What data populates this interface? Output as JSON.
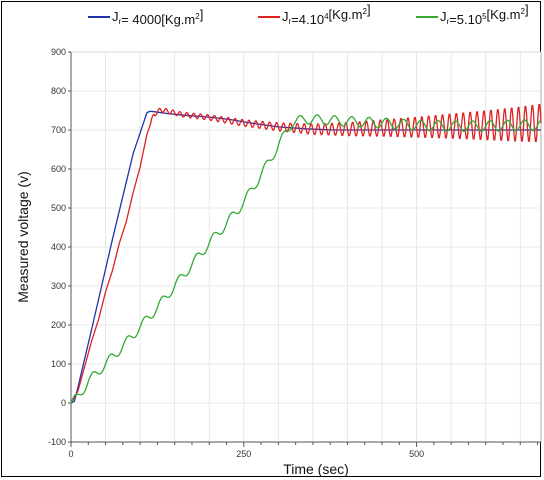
{
  "chart_data": {
    "type": "line",
    "title": "",
    "xlabel": "Time (sec)",
    "ylabel": "Measured voltage (v)",
    "xlim": [
      0,
      680
    ],
    "ylim": [
      -100,
      900
    ],
    "x_ticks": [
      0,
      250,
      500
    ],
    "y_ticks": [
      -100,
      0,
      100,
      200,
      300,
      400,
      500,
      600,
      700,
      800,
      900
    ],
    "grid": true,
    "legend_position": "top",
    "legend": [
      {
        "pre": "J",
        "sub": "r",
        "mid": "= 4000[Kg.m",
        "sup": "2",
        "post": "]"
      },
      {
        "pre": "J",
        "sub": "r",
        "mid": "=4.10",
        "sup": "4",
        "post": "[Kg.m",
        "sup2": "2",
        "post2": "]"
      },
      {
        "pre": "J",
        "sub": "r",
        "mid": "=5.10",
        "sup": "5",
        "post": "[Kg.m",
        "sup2": "2",
        "post2": "]"
      }
    ],
    "series": [
      {
        "name": "Jr= 4000[Kg.m2]",
        "color": "#2233aa",
        "x": [
          0,
          5,
          10,
          30,
          60,
          90,
          110,
          115,
          120,
          140,
          170,
          200,
          230,
          260,
          300,
          340,
          380,
          420,
          460,
          500,
          540,
          580,
          620,
          660,
          680
        ],
        "y": [
          0,
          5,
          40,
          190,
          420,
          640,
          745,
          748,
          747,
          742,
          737,
          733,
          727,
          718,
          708,
          703,
          700,
          700,
          700,
          700,
          700,
          700,
          700,
          700,
          700
        ]
      },
      {
        "name": "Jr=4.10^4[Kg.m2]",
        "color": "#dd2222",
        "x": [
          0,
          10,
          20,
          30,
          40,
          50,
          60,
          70,
          80,
          90,
          100,
          110,
          120,
          130,
          140,
          160,
          200,
          250,
          300,
          350,
          400,
          450,
          500,
          550,
          600,
          650,
          680
        ],
        "y": [
          0,
          30,
          95,
          160,
          215,
          285,
          340,
          410,
          465,
          540,
          605,
          690,
          740,
          752,
          748,
          740,
          732,
          718,
          708,
          702,
          702,
          705,
          707,
          710,
          712,
          715,
          718
        ],
        "oscillation": {
          "start": 115,
          "amplitude_start": 6,
          "amplitude_end": 50,
          "period": 10
        }
      },
      {
        "name": "Jr=5.10^5[Kg.m2]",
        "color": "#33aa33",
        "x": [
          0,
          10,
          25,
          50,
          75,
          100,
          125,
          150,
          175,
          200,
          225,
          250,
          275,
          300,
          320,
          340,
          400,
          450,
          500,
          550,
          600,
          650,
          680
        ],
        "y": [
          0,
          15,
          55,
          100,
          145,
          195,
          245,
          300,
          355,
          410,
          460,
          515,
          585,
          660,
          720,
          728,
          722,
          718,
          712,
          710,
          710,
          712,
          712
        ],
        "oscillation": {
          "start": 0,
          "amplitude_start": 12,
          "amplitude_end": 14,
          "period": 25
        }
      }
    ]
  }
}
